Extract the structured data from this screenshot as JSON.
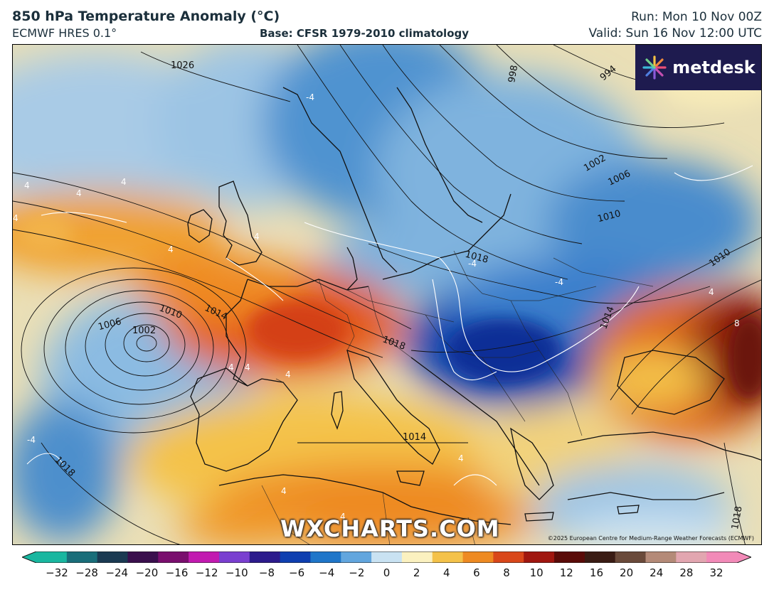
{
  "header": {
    "title": "850 hPa Temperature Anomaly (°C)",
    "model": "ECMWF HRES 0.1°",
    "base": "Base: CFSR 1979-2010 climatology",
    "run": "Run: Mon 10 Nov 00Z",
    "valid": "Valid: Sun 16 Nov 12:00 UTC"
  },
  "brand": {
    "logo_text": "metdesk",
    "logo_bg": "#1e1b4f"
  },
  "watermark": "WXCHARTS.COM",
  "copyright": "©2025 European Centre for Medium-Range Weather Forecasts (ECMWF)",
  "map": {
    "isobar_labels": [
      "1026",
      "998",
      "994",
      "1002",
      "1006",
      "1010",
      "1018",
      "1010",
      "1014",
      "1006",
      "1002",
      "1010",
      "1014",
      "1018",
      "1014",
      "1018",
      "1018"
    ],
    "anomaly_labels": [
      "-4",
      "4",
      "4",
      "4",
      "4",
      "4",
      "4",
      "-4",
      "-4",
      "4",
      "8",
      "4",
      "4",
      "4",
      "4",
      "-4",
      "4",
      "4"
    ]
  },
  "colorbar": {
    "ticks": [
      "−32",
      "−28",
      "−24",
      "−20",
      "−16",
      "−12",
      "−10",
      "−8",
      "−6",
      "−4",
      "−2",
      "0",
      "2",
      "4",
      "6",
      "8",
      "10",
      "12",
      "16",
      "20",
      "24",
      "28",
      "32"
    ],
    "colors": [
      "#19b7a0",
      "#1a6e7a",
      "#1b3a52",
      "#3a0f4d",
      "#7a0e6e",
      "#c21ab0",
      "#7a3fd0",
      "#2c1b8c",
      "#0e3fb0",
      "#1f76c9",
      "#62a6de",
      "#c9e2f2",
      "#fbf1c0",
      "#f4c24a",
      "#ee8a22",
      "#d9471a",
      "#a0160f",
      "#5a0b08",
      "#3a1c14",
      "#6a4a3a",
      "#b48a78",
      "#e2a6b0",
      "#f28ab8"
    ]
  }
}
